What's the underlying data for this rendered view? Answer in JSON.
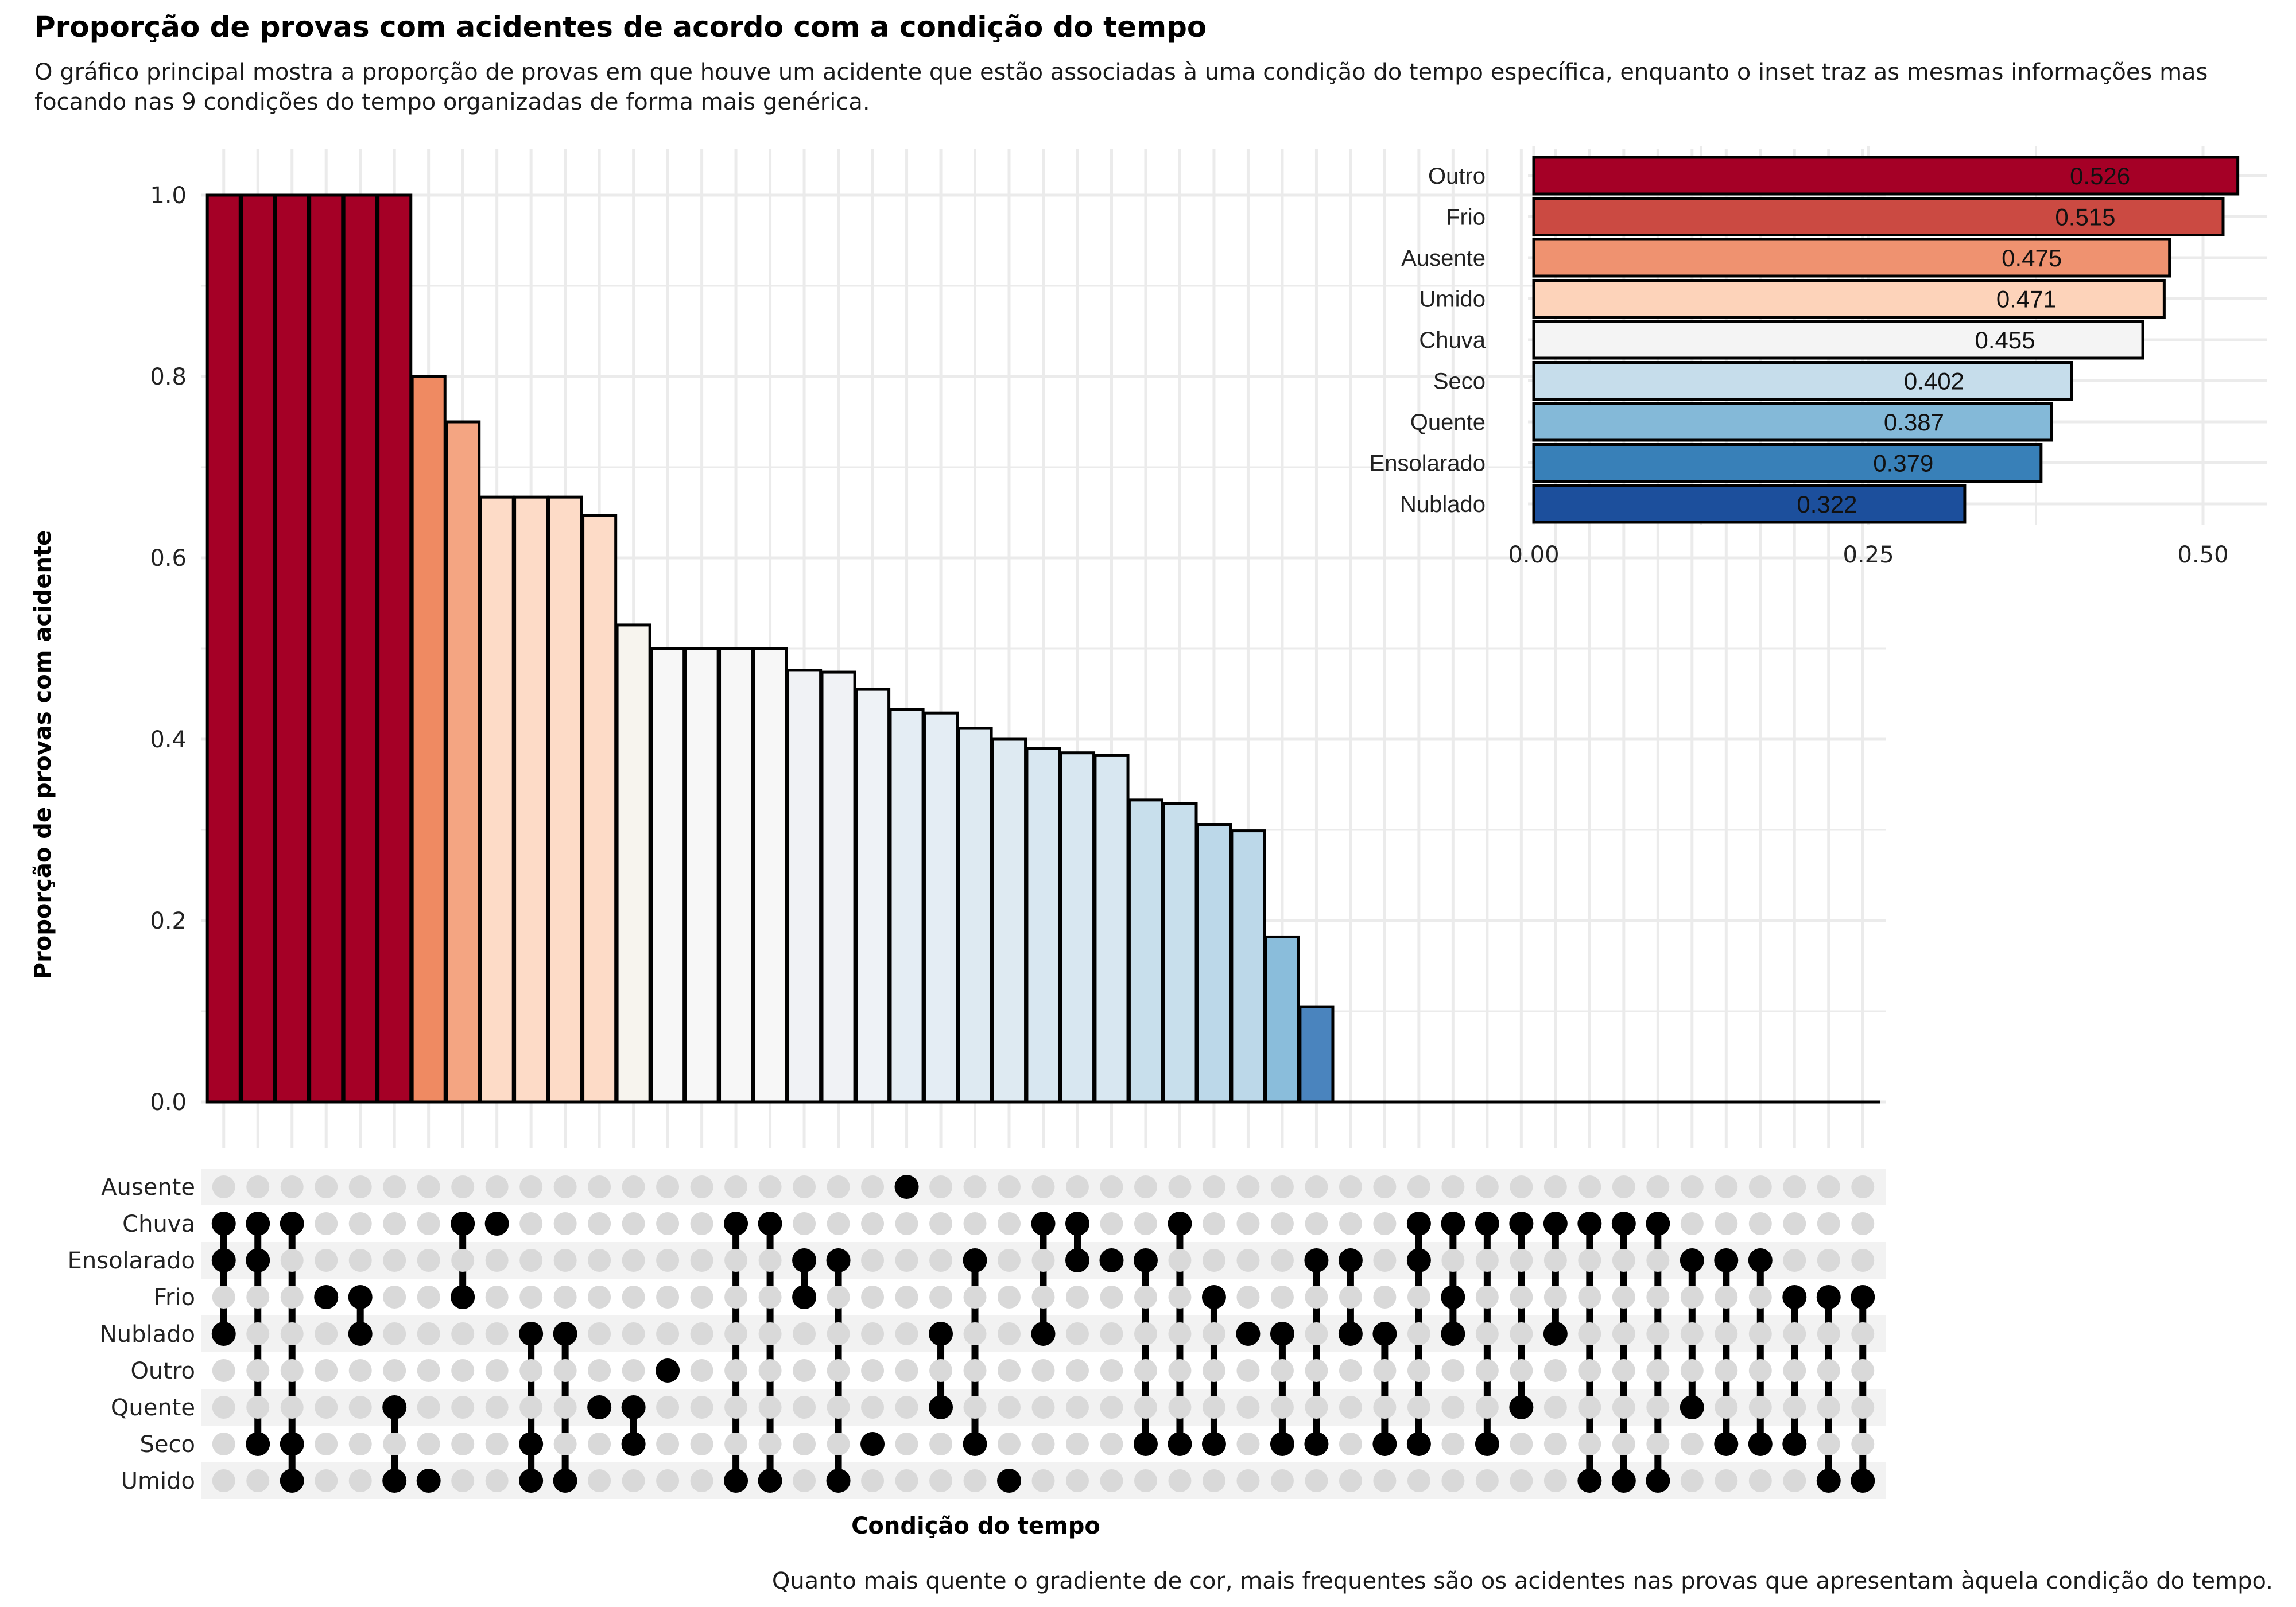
{
  "title": "Proporção de provas com acidentes de acordo com a condição do tempo",
  "subtitle": "O gráfico principal mostra a proporção de provas em que houve um acidente que estão associadas à uma condição do tempo específica, enquanto o inset traz as mesmas informações mas focando nas 9 condições do tempo organizadas de forma mais genérica.",
  "caption": "Quanto mais quente o gradiente de cor, mais frequentes são os acidentes nas provas que apresentam àquela condição do tempo.",
  "chart_data": [
    {
      "type": "bar",
      "chart_subtype": "upset",
      "ylabel": "Proporção de provas com acidente",
      "xlabel": "Condição do tempo",
      "ylim": [
        0,
        1.0
      ],
      "yticks": [
        "0.0",
        "0.2",
        "0.4",
        "0.6",
        "0.8",
        "1.0"
      ],
      "grid": true,
      "conditions": [
        "Ausente",
        "Chuva",
        "Ensolarado",
        "Frio",
        "Nublado",
        "Outro",
        "Quente",
        "Seco",
        "Umido"
      ],
      "values": [
        1.0,
        1.0,
        1.0,
        1.0,
        1.0,
        1.0,
        0.8,
        0.75,
        0.667,
        0.667,
        0.667,
        0.647,
        0.526,
        0.5,
        0.5,
        0.5,
        0.5,
        0.476,
        0.474,
        0.455,
        0.433,
        0.429,
        0.412,
        0.4,
        0.39,
        0.385,
        0.382,
        0.333,
        0.329,
        0.306,
        0.299,
        0.182,
        0.105,
        0,
        0,
        0,
        0,
        0,
        0,
        0,
        0,
        0,
        0,
        0,
        0,
        0,
        0,
        0,
        0
      ],
      "bar_colors": [
        "#A50026",
        "#A50026",
        "#A50026",
        "#A50026",
        "#A50026",
        "#A50026",
        "#EF8A62",
        "#F4A582",
        "#FDDBC7",
        "#FDDBC7",
        "#FDDBC7",
        "#FDDBC7",
        "#F7F4EE",
        "#F7F7F7",
        "#F7F7F7",
        "#F7F7F7",
        "#F7F7F7",
        "#F0F2F5",
        "#F0F2F5",
        "#EEF2F6",
        "#E4EDF4",
        "#E4EDF4",
        "#DEEAF2",
        "#DEEAF2",
        "#D8E7F1",
        "#D8E7F1",
        "#D8E7F1",
        "#C8DFEC",
        "#C8DFEC",
        "#BCD8E9",
        "#BCD8E9",
        "#8ABDDB",
        "#4A84BE"
      ],
      "sets": [
        [
          "Chuva",
          "Ensolarado",
          "Nublado"
        ],
        [
          "Chuva",
          "Ensolarado",
          "Seco"
        ],
        [
          "Chuva",
          "Seco",
          "Umido"
        ],
        [
          "Frio"
        ],
        [
          "Frio",
          "Nublado"
        ],
        [
          "Quente",
          "Umido"
        ],
        [
          "Umido"
        ],
        [
          "Chuva",
          "Frio"
        ],
        [
          "Chuva"
        ],
        [
          "Nublado",
          "Seco",
          "Umido"
        ],
        [
          "Nublado",
          "Umido"
        ],
        [
          "Quente"
        ],
        [
          "Quente",
          "Seco"
        ],
        [
          "Outro"
        ],
        [],
        [
          "Chuva",
          "Umido"
        ],
        [
          "Chuva",
          "Umido"
        ],
        [
          "Ensolarado",
          "Frio"
        ],
        [
          "Ensolarado",
          "Umido"
        ],
        [
          "Seco"
        ],
        [
          "Ausente"
        ],
        [
          "Nublado",
          "Quente"
        ],
        [
          "Ensolarado",
          "Seco"
        ],
        [
          "Umido"
        ],
        [
          "Chuva",
          "Nublado"
        ],
        [
          "Chuva",
          "Ensolarado"
        ],
        [
          "Ensolarado"
        ],
        [
          "Ensolarado",
          "Seco"
        ],
        [
          "Chuva",
          "Seco"
        ],
        [
          "Frio",
          "Seco"
        ],
        [
          "Nublado"
        ],
        [
          "Nublado",
          "Seco"
        ],
        [
          "Ensolarado",
          "Seco"
        ],
        [
          "Ensolarado",
          "Nublado"
        ],
        [
          "Nublado",
          "Seco"
        ],
        [
          "Chuva",
          "Ensolarado",
          "Seco"
        ],
        [
          "Chuva",
          "Frio",
          "Nublado"
        ],
        [
          "Chuva",
          "Seco"
        ],
        [
          "Chuva",
          "Quente"
        ],
        [
          "Chuva",
          "Nublado"
        ],
        [
          "Chuva",
          "Umido"
        ],
        [
          "Chuva",
          "Umido"
        ],
        [
          "Chuva",
          "Umido"
        ],
        [
          "Ensolarado",
          "Quente"
        ],
        [
          "Ensolarado",
          "Seco"
        ],
        [
          "Ensolarado",
          "Seco"
        ],
        [
          "Frio",
          "Seco"
        ],
        [
          "Frio",
          "Umido"
        ],
        [
          "Frio",
          "Umido"
        ]
      ]
    },
    {
      "type": "bar",
      "orientation": "horizontal",
      "categories": [
        "Outro",
        "Frio",
        "Ausente",
        "Umido",
        "Chuva",
        "Seco",
        "Quente",
        "Ensolarado",
        "Nublado"
      ],
      "values": [
        0.526,
        0.515,
        0.475,
        0.471,
        0.455,
        0.402,
        0.387,
        0.379,
        0.322
      ],
      "labels": [
        "0.526",
        "0.515",
        "0.475",
        "0.471",
        "0.455",
        "0.402",
        "0.387",
        "0.379",
        "0.322"
      ],
      "colors": [
        "#A50026",
        "#CB4A42",
        "#EF9270",
        "#FDD3BA",
        "#F4F4F4",
        "#C6DDEB",
        "#84B9D8",
        "#3880B8",
        "#1C4F9C"
      ],
      "xlim": [
        0,
        0.55
      ],
      "xticks": [
        "0.00",
        "0.25",
        "0.50"
      ],
      "grid": true,
      "placement": "top-right inset"
    }
  ]
}
